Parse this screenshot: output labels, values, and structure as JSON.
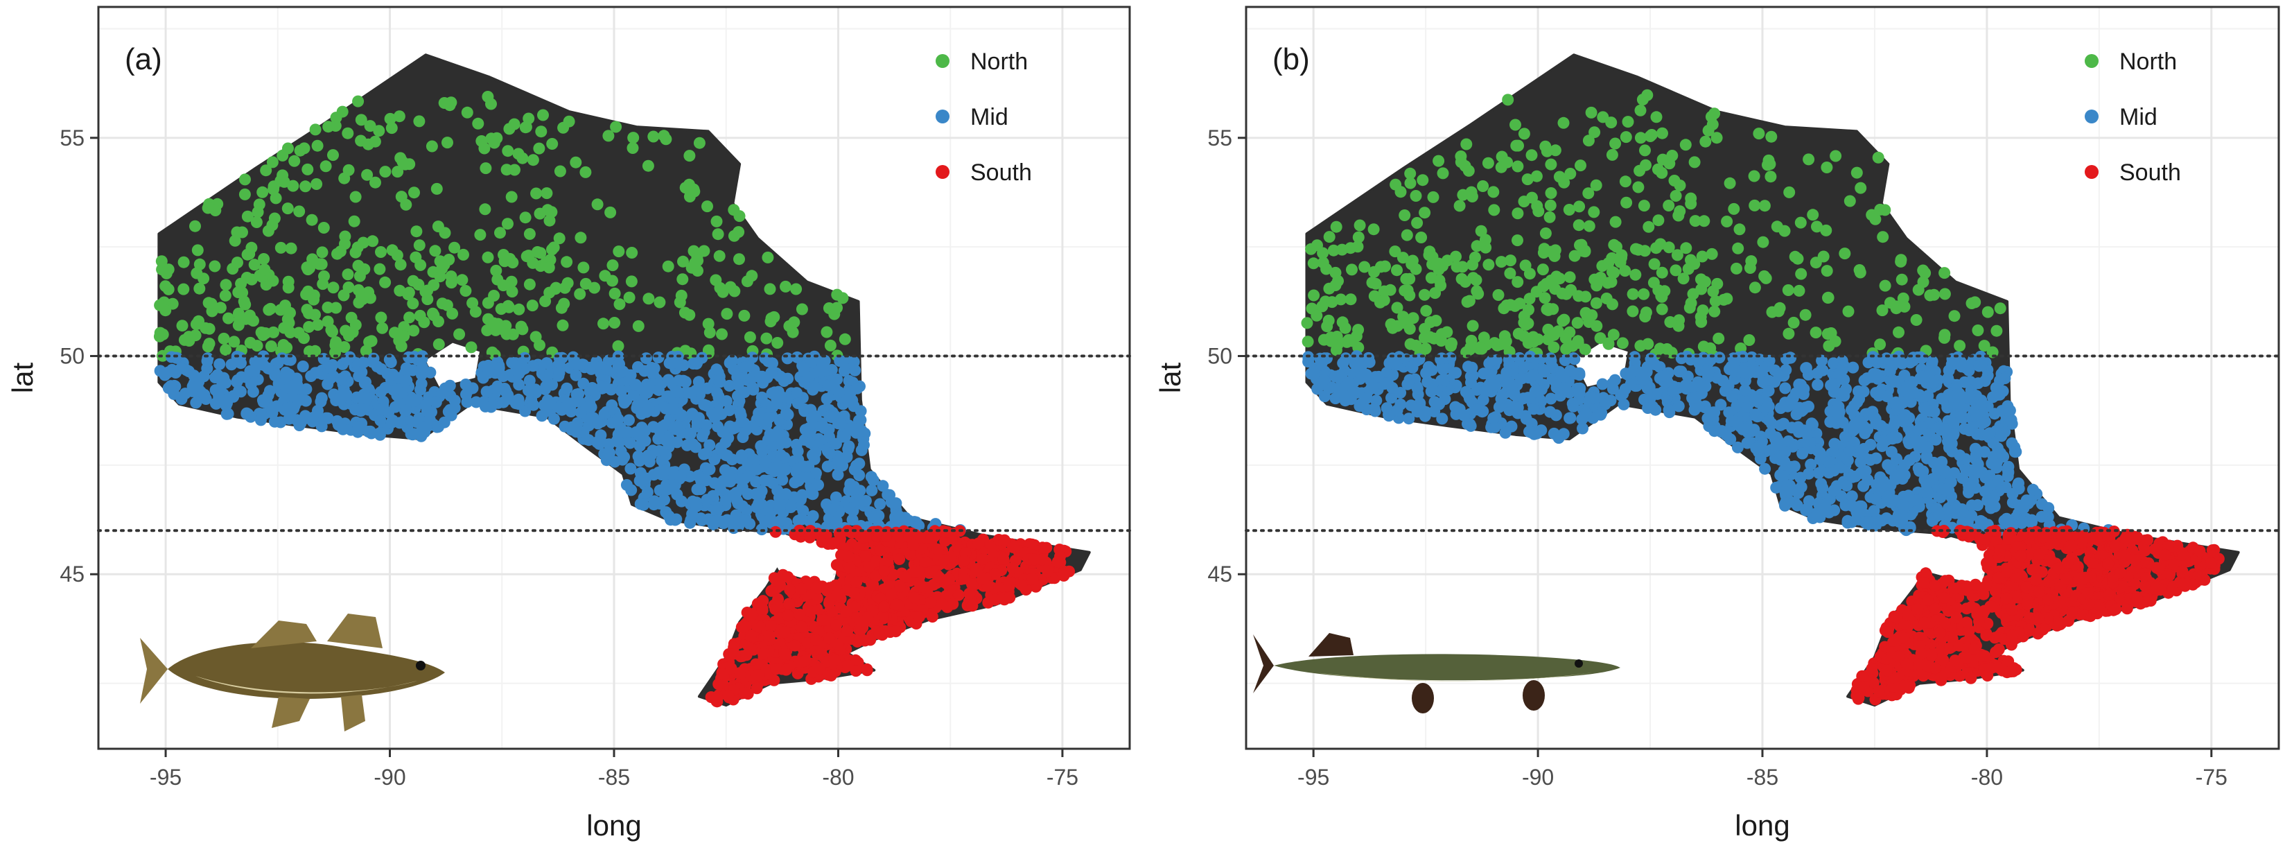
{
  "chart_data": [
    {
      "type": "scatter",
      "panel_label": "(a)",
      "title": "",
      "xlabel": "long",
      "ylabel": "lat",
      "xlim": [
        -96.5,
        -73.5
      ],
      "ylim": [
        41.0,
        58.0
      ],
      "x_ticks": [
        -95,
        -90,
        -85,
        -80,
        -75
      ],
      "x_tick_labels": [
        "-95",
        "-90",
        "-85",
        "-80",
        "-75"
      ],
      "y_ticks": [
        45,
        50,
        55
      ],
      "y_tick_labels": [
        "45",
        "50",
        "55"
      ],
      "grid": true,
      "legend_position": "top-right",
      "hlines": [
        50,
        46
      ],
      "species_icon": "walleye-fish",
      "series": [
        {
          "name": "North",
          "color": "#4db848",
          "lat_range": [
            50,
            56
          ],
          "n": 500
        },
        {
          "name": "Mid",
          "color": "#3a87c8",
          "lat_range": [
            46,
            50
          ],
          "n": 1200
        },
        {
          "name": "South",
          "color": "#e3191c",
          "lat_range": [
            41.8,
            46
          ],
          "n": 900
        }
      ]
    },
    {
      "type": "scatter",
      "panel_label": "(b)",
      "title": "",
      "xlabel": "long",
      "ylabel": "lat",
      "xlim": [
        -96.5,
        -73.5
      ],
      "ylim": [
        41.0,
        58.0
      ],
      "x_ticks": [
        -95,
        -90,
        -85,
        -80,
        -75
      ],
      "x_tick_labels": [
        "-95",
        "-90",
        "-85",
        "-80",
        "-75"
      ],
      "y_ticks": [
        45,
        50,
        55
      ],
      "y_tick_labels": [
        "45",
        "50",
        "55"
      ],
      "grid": true,
      "legend_position": "top-right",
      "hlines": [
        50,
        46
      ],
      "species_icon": "northern-pike-fish",
      "series": [
        {
          "name": "North",
          "color": "#4db848",
          "lat_range": [
            50,
            56
          ],
          "n": 520
        },
        {
          "name": "Mid",
          "color": "#3a87c8",
          "lat_range": [
            46,
            50
          ],
          "n": 1250
        },
        {
          "name": "South",
          "color": "#e3191c",
          "lat_range": [
            41.8,
            46
          ],
          "n": 950
        }
      ]
    }
  ],
  "map": {
    "fill": "#2e2e2e",
    "outline_lonlat": [
      [
        -95.15,
        52.8
      ],
      [
        -93.0,
        54.3
      ],
      [
        -91.5,
        55.3
      ],
      [
        -89.2,
        56.9
      ],
      [
        -87.8,
        56.4
      ],
      [
        -86.0,
        55.6
      ],
      [
        -84.5,
        55.25
      ],
      [
        -82.9,
        55.15
      ],
      [
        -82.2,
        54.4
      ],
      [
        -82.35,
        53.5
      ],
      [
        -81.8,
        52.7
      ],
      [
        -80.7,
        51.7
      ],
      [
        -79.55,
        51.25
      ],
      [
        -79.5,
        49.0
      ],
      [
        -79.3,
        47.4
      ],
      [
        -78.4,
        46.3
      ],
      [
        -76.8,
        45.9
      ],
      [
        -74.4,
        45.5
      ],
      [
        -74.6,
        45.1
      ],
      [
        -76.5,
        44.3
      ],
      [
        -78.0,
        43.95
      ],
      [
        -79.2,
        43.5
      ],
      [
        -79.8,
        43.2
      ],
      [
        -79.2,
        42.8
      ],
      [
        -80.4,
        42.6
      ],
      [
        -81.5,
        42.5
      ],
      [
        -82.5,
        42.0
      ],
      [
        -83.1,
        42.2
      ],
      [
        -82.5,
        43.1
      ],
      [
        -82.2,
        43.9
      ],
      [
        -81.6,
        44.7
      ],
      [
        -81.3,
        45.2
      ],
      [
        -80.6,
        45.3
      ],
      [
        -80.4,
        45.1
      ],
      [
        -80.1,
        44.7
      ],
      [
        -80.0,
        45.1
      ],
      [
        -80.5,
        45.7
      ],
      [
        -81.2,
        45.95
      ],
      [
        -82.5,
        46.05
      ],
      [
        -83.8,
        46.25
      ],
      [
        -84.6,
        46.6
      ],
      [
        -84.8,
        47.3
      ],
      [
        -85.6,
        47.9
      ],
      [
        -86.5,
        48.6
      ],
      [
        -88.2,
        48.9
      ],
      [
        -89.3,
        48.1
      ],
      [
        -90.5,
        48.2
      ],
      [
        -92.0,
        48.4
      ],
      [
        -93.4,
        48.6
      ],
      [
        -94.7,
        48.9
      ],
      [
        -95.15,
        49.4
      ]
    ],
    "lake_nipigon": [
      [
        -88.9,
        49.3
      ],
      [
        -88.1,
        49.5
      ],
      [
        -88.0,
        50.1
      ],
      [
        -88.6,
        50.3
      ],
      [
        -89.2,
        49.9
      ]
    ],
    "georgian_bay": [
      [
        -81.3,
        45.05
      ],
      [
        -80.2,
        44.75
      ],
      [
        -79.9,
        45.6
      ],
      [
        -80.8,
        45.85
      ],
      [
        -81.6,
        45.6
      ]
    ]
  },
  "species_icons": {
    "walleye": {
      "body": "#6b5a2c",
      "belly": "#d8cda0",
      "fin": "#8a7640"
    },
    "pike": {
      "body": "#55613a",
      "belly": "#c8c9a0",
      "fin": "#3b2418"
    }
  }
}
